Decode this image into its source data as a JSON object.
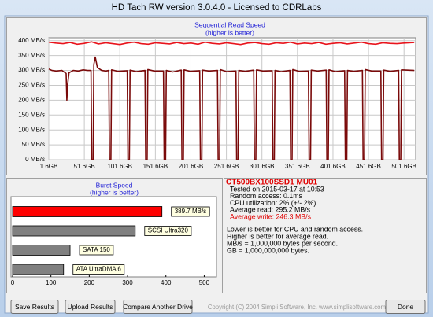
{
  "window": {
    "title": "HD Tach RW version 3.0.4.0 - Licensed to CDRLabs"
  },
  "chart_data": [
    {
      "type": "line",
      "title": "Sequential Read Speed",
      "subtitle": "(higher is better)",
      "xlim": [
        1.6,
        518
      ],
      "xticks": [
        {
          "value": 1.6,
          "label": "1.6GB"
        },
        {
          "value": 51.6,
          "label": "51.6GB"
        },
        {
          "value": 101.6,
          "label": "101.6GB"
        },
        {
          "value": 151.6,
          "label": "151.6GB"
        },
        {
          "value": 201.6,
          "label": "201.6GB"
        },
        {
          "value": 251.6,
          "label": "251.6GB"
        },
        {
          "value": 301.6,
          "label": "301.6GB"
        },
        {
          "value": 351.6,
          "label": "351.6GB"
        },
        {
          "value": 401.6,
          "label": "401.6GB"
        },
        {
          "value": 451.6,
          "label": "451.6GB"
        },
        {
          "value": 501.6,
          "label": "501.6GB"
        }
      ],
      "ylim": [
        0,
        410
      ],
      "yticks": [
        {
          "value": 0,
          "label": "0 MB/s"
        },
        {
          "value": 50,
          "label": "50 MB/s"
        },
        {
          "value": 100,
          "label": "100 MB/s"
        },
        {
          "value": 150,
          "label": "150 MB/s"
        },
        {
          "value": 200,
          "label": "200 MB/s"
        },
        {
          "value": 250,
          "label": "250 MB/s"
        },
        {
          "value": 300,
          "label": "300 MB/s"
        },
        {
          "value": 350,
          "label": "350 MB/s"
        },
        {
          "value": 400,
          "label": "400 MB/s"
        }
      ],
      "grid": true,
      "series": [
        {
          "color": "#e8141c",
          "x": [
            1.6,
            11.6,
            21.6,
            31.6,
            41.6,
            51.6,
            61.6,
            71.6,
            81.6,
            91.6,
            101.6,
            111.6,
            121.6,
            131.6,
            141.6,
            151.6,
            161.6,
            171.6,
            181.6,
            191.6,
            201.6,
            211.6,
            221.6,
            231.6,
            241.6,
            251.6,
            261.6,
            271.6,
            281.6,
            291.6,
            301.6,
            311.6,
            321.6,
            331.6,
            341.6,
            351.6,
            361.6,
            371.6,
            381.6,
            391.6,
            401.6,
            411.6,
            421.6,
            431.6,
            441.6,
            451.6,
            461.6,
            471.6,
            481.6,
            491.6,
            501.6,
            516
          ],
          "values": [
            395,
            392,
            390,
            394,
            388,
            391,
            396,
            389,
            393,
            390,
            387,
            392,
            395,
            390,
            388,
            393,
            391,
            389,
            394,
            390,
            392,
            388,
            395,
            391,
            389,
            393,
            390,
            387,
            392,
            394,
            390,
            388,
            393,
            391,
            395,
            389,
            392,
            390,
            394,
            388,
            391,
            393,
            389,
            392,
            395,
            390,
            388,
            393,
            391,
            390,
            392,
            394
          ]
        },
        {
          "color": "#7a0a0a",
          "x": [
            1.6,
            6,
            12,
            20,
            26,
            27,
            28,
            30,
            36,
            43,
            50,
            56,
            61,
            62,
            64,
            65,
            67,
            70,
            76,
            82,
            86,
            87,
            89,
            90,
            99,
            112,
            113,
            115,
            116,
            125,
            137,
            138,
            140,
            141,
            150,
            163,
            164,
            166,
            167,
            176,
            188,
            189,
            191,
            192,
            201,
            214,
            215,
            217,
            218,
            227,
            239,
            240,
            242,
            243,
            252,
            265,
            266,
            268,
            269,
            278,
            290,
            291,
            293,
            294,
            303,
            316,
            317,
            319,
            320,
            329,
            341,
            342,
            344,
            345,
            354,
            367,
            368,
            370,
            371,
            380,
            392,
            393,
            395,
            396,
            405,
            418,
            419,
            421,
            422,
            431,
            443,
            444,
            446,
            447,
            456,
            469,
            470,
            472,
            473,
            482,
            494,
            495,
            497,
            498,
            516
          ],
          "values": [
            305,
            300,
            298,
            300,
            290,
            200,
            250,
            292,
            300,
            298,
            302,
            300,
            300,
            0,
            0,
            320,
            345,
            310,
            300,
            298,
            300,
            0,
            0,
            302,
            297,
            299,
            0,
            0,
            301,
            296,
            300,
            0,
            0,
            303,
            298,
            298,
            0,
            0,
            300,
            295,
            301,
            0,
            0,
            302,
            297,
            299,
            0,
            0,
            301,
            298,
            300,
            0,
            0,
            303,
            296,
            298,
            0,
            0,
            300,
            297,
            301,
            0,
            0,
            302,
            298,
            299,
            0,
            0,
            300,
            296,
            300,
            0,
            0,
            303,
            297,
            298,
            0,
            0,
            301,
            298,
            301,
            0,
            0,
            302,
            296,
            299,
            0,
            0,
            300,
            297,
            300,
            0,
            0,
            303,
            298,
            298,
            0,
            0,
            301,
            297,
            300,
            0,
            0,
            302,
            300
          ]
        }
      ]
    },
    {
      "type": "bar",
      "orientation": "horizontal",
      "title": "Burst Speed",
      "subtitle": "(higher is better)",
      "categories": [
        null,
        "SCSI Ultra320",
        "SATA 150",
        "ATA UltraDMA 6"
      ],
      "values": [
        389.7,
        320,
        150,
        133
      ],
      "value_labels": [
        "389.7 MB/s",
        null,
        null,
        null
      ],
      "colors": [
        "#ff0000",
        "#808080",
        "#808080",
        "#808080"
      ],
      "xlim": [
        0,
        532
      ],
      "xticks": [
        0,
        100,
        200,
        300,
        400,
        500
      ]
    }
  ],
  "info": {
    "drive": "CT500BX100SSD1 MU01",
    "results": [
      "Tested on 2015-03-17 at 10:53",
      "Random access: 0.1ms",
      "CPU utilization: 2% (+/- 2%)",
      "Average read: 295.2 MB/s",
      "Average write: 246.3 MB/s"
    ],
    "notes": [
      "Lower is better for CPU and random access.",
      "Higher is better for average read.",
      "MB/s = 1,000,000 bytes per second.",
      "GB = 1,000,000,000 bytes."
    ]
  },
  "buttons": [
    "Save Results",
    "Upload Results",
    "Compare Another Drive"
  ],
  "copyright": "Copyright (C) 2004 Simpli Software, Inc. www.simplisoftware.com",
  "done": "Done"
}
